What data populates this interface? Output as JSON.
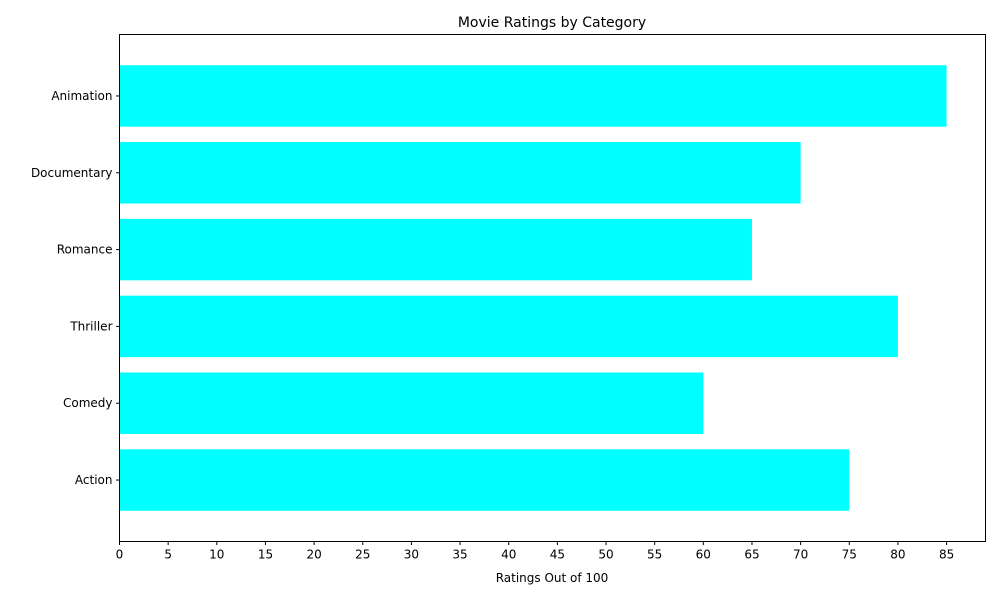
{
  "chart_data": {
    "type": "bar",
    "orientation": "horizontal",
    "title": "Movie Ratings by Category",
    "xlabel": "Ratings Out of 100",
    "ylabel": "",
    "categories": [
      "Action",
      "Comedy",
      "Thriller",
      "Romance",
      "Documentary",
      "Animation"
    ],
    "values": [
      75,
      60,
      80,
      65,
      70,
      85
    ],
    "xlim": [
      0,
      89
    ],
    "xticks": [
      0,
      5,
      10,
      15,
      20,
      25,
      30,
      35,
      40,
      45,
      50,
      55,
      60,
      65,
      70,
      75,
      80,
      85
    ],
    "bar_color": "#00ffff",
    "grid": false,
    "legend": "none"
  }
}
